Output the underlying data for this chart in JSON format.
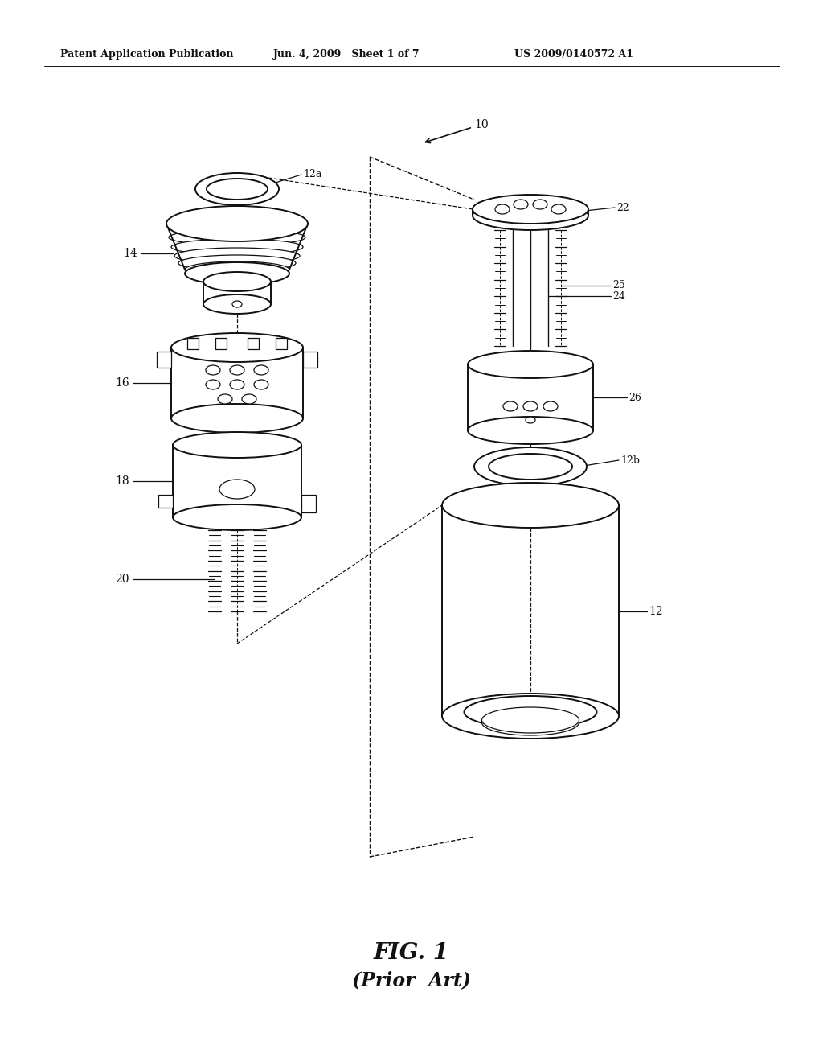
{
  "bg_color": "#ffffff",
  "line_color": "#111111",
  "header_left": "Patent Application Publication",
  "header_mid": "Jun. 4, 2009   Sheet 1 of 7",
  "header_right": "US 2009/0140572 A1",
  "fig_label": "FIG. 1",
  "fig_sublabel": "(Prior  Art)"
}
